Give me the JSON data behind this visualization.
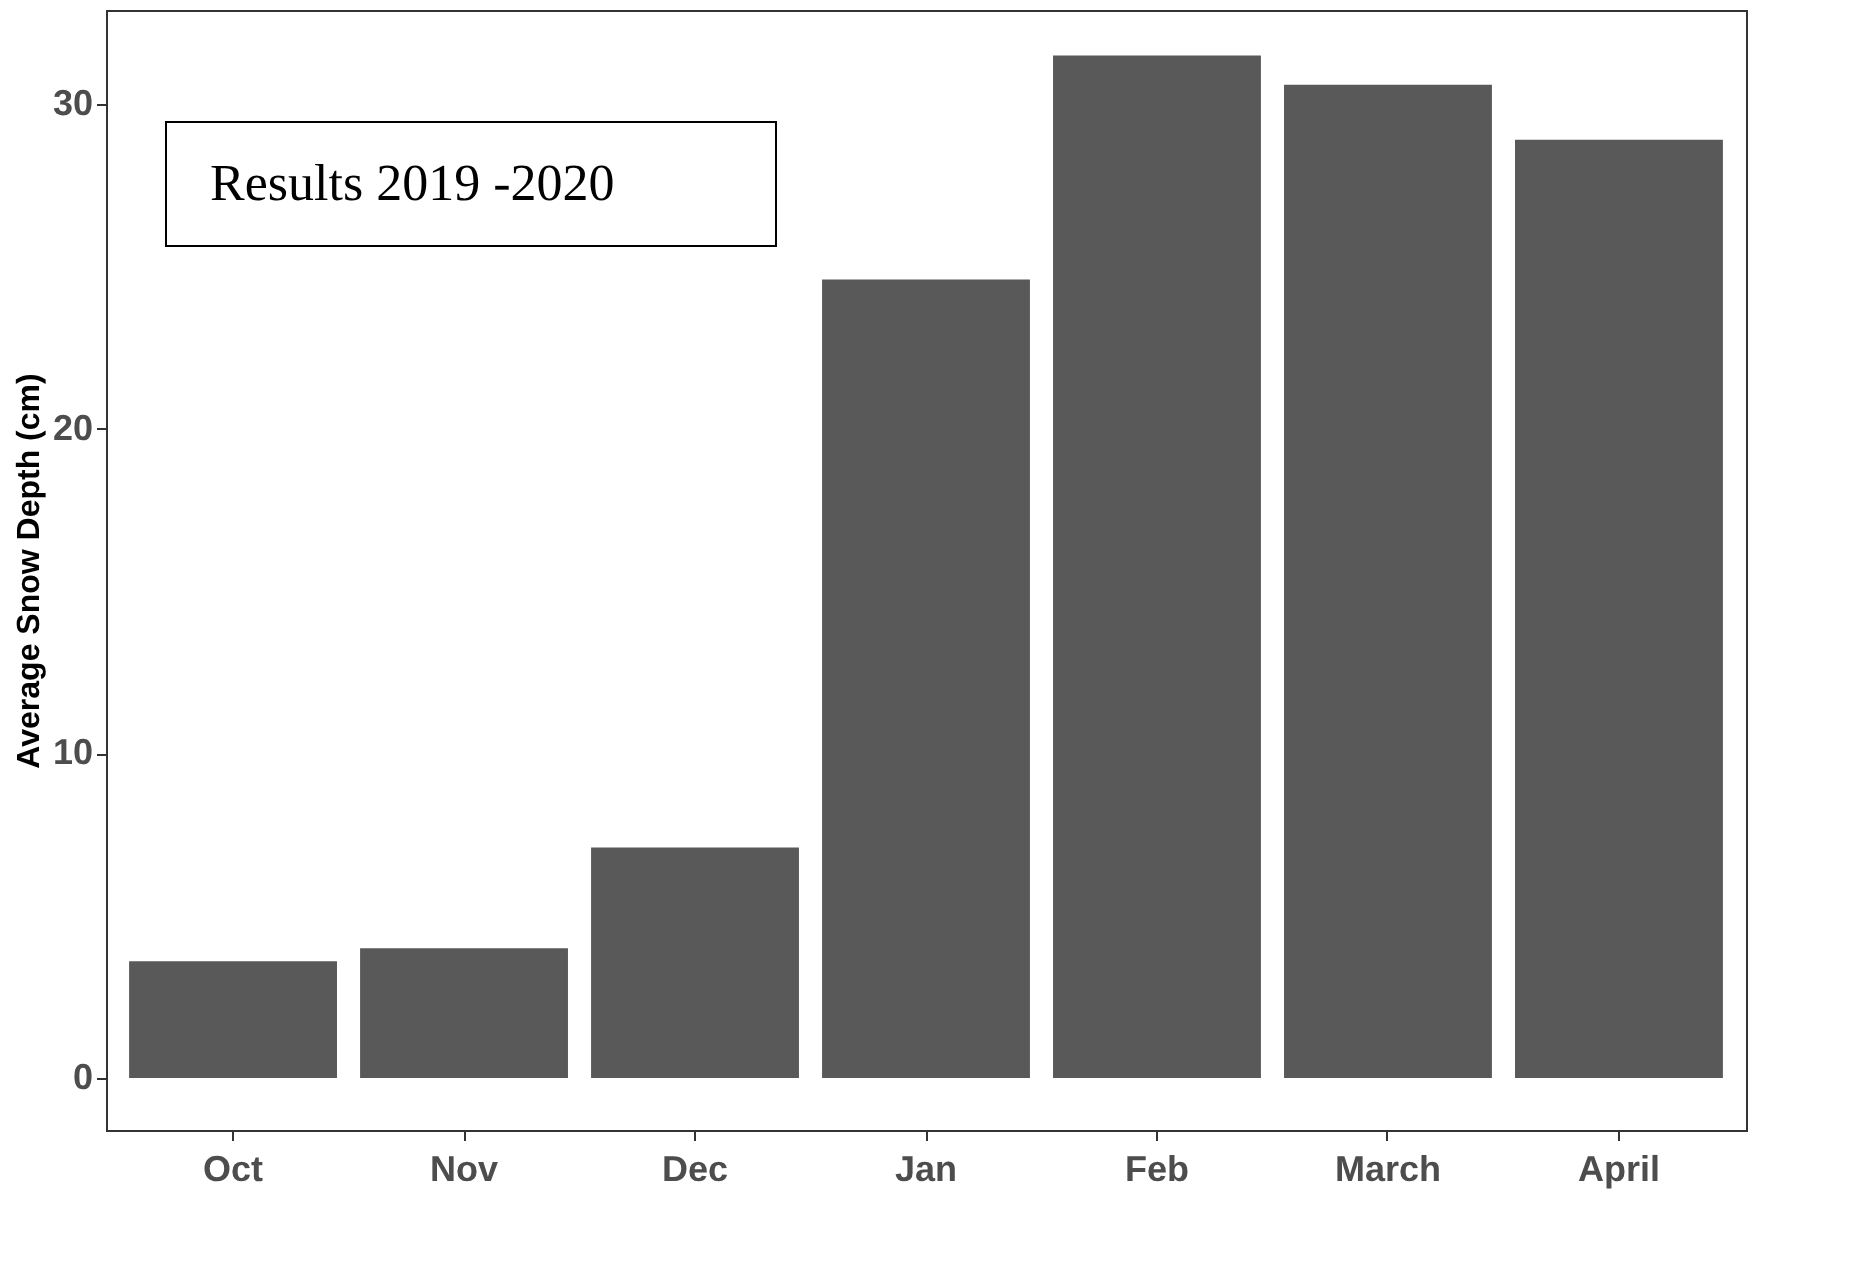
{
  "chart_data": {
    "type": "bar",
    "ylabel": "Average Snow Depth (cm)",
    "annotations": [
      "Results 2019 -2020"
    ],
    "categories": [
      "Oct",
      "Nov",
      "Dec",
      "Jan",
      "Feb",
      "March",
      "April"
    ],
    "values": [
      3.6,
      4.0,
      7.1,
      24.6,
      31.5,
      30.6,
      28.9
    ],
    "color": "#595959",
    "ylim": [
      -1.6,
      32.9
    ],
    "yticks": [
      0,
      10,
      20,
      30
    ],
    "grid": false,
    "legend": false
  }
}
